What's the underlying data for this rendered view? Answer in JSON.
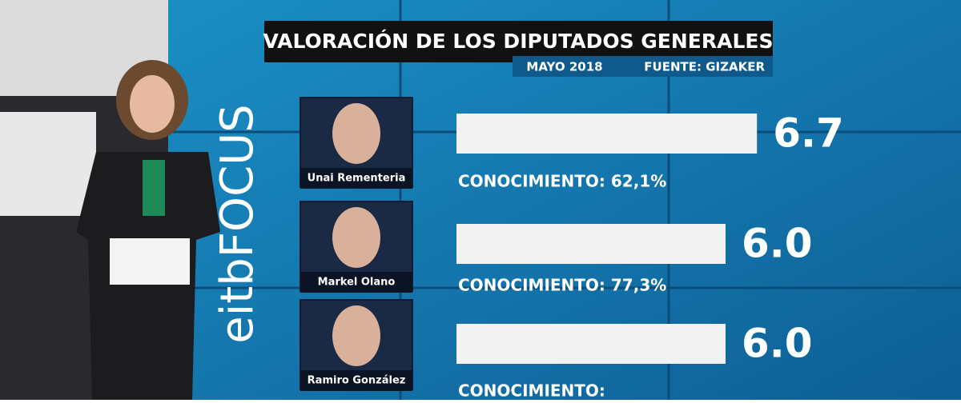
{
  "chart_data": {
    "type": "bar",
    "orientation": "horizontal",
    "title": "VALORACIÓN DE LOS DIPUTADOS GENERALES",
    "subtitle": "MAYO 2018",
    "source": "FUENTE: GIZAKER",
    "logo": "eitbFOCUS",
    "categories": [
      "Unai Rementeria",
      "Markel Olano",
      "Ramiro González"
    ],
    "values": [
      6.7,
      6.0,
      6.0
    ],
    "value_labels": [
      "6.7",
      "6.0",
      "6.0"
    ],
    "annotations": [
      "CONOCIMIENTO: 62,1%",
      "CONOCIMIENTO: 77,3%",
      "CONOCIMIENTO:"
    ],
    "color": "#f2f2f2"
  }
}
